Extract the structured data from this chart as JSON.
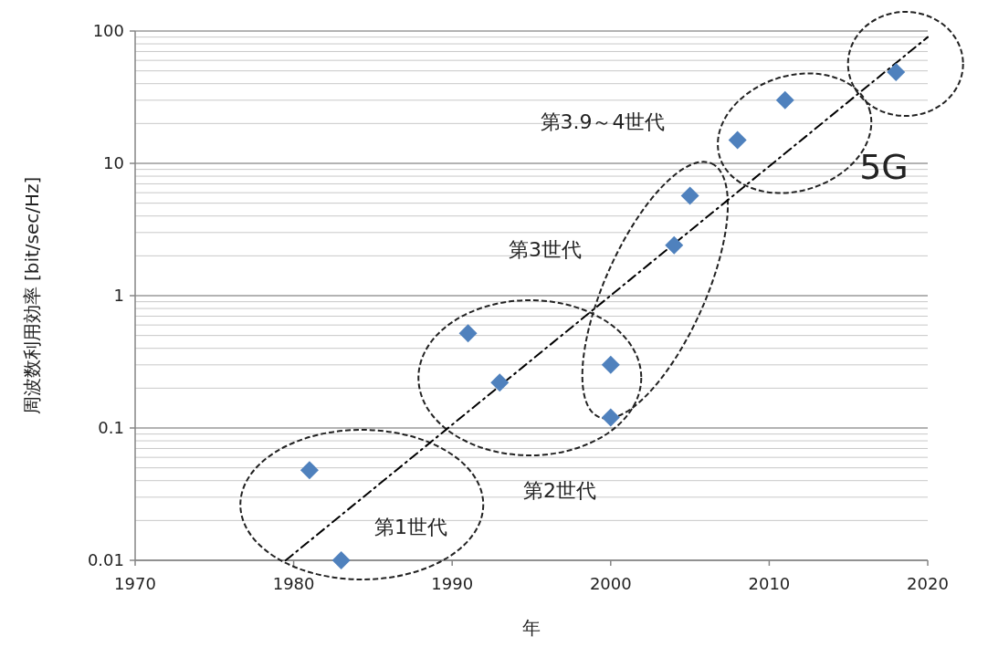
{
  "chart_data": {
    "type": "scatter",
    "xlabel": "年",
    "ylabel": "周波数利用効率 [bit/sec/Hz]",
    "xlim": [
      1970,
      2020
    ],
    "ylim": [
      0.01,
      100
    ],
    "xticks": [
      1970,
      1980,
      1990,
      2000,
      2010,
      2020
    ],
    "yticks": [
      0.01,
      0.1,
      1,
      10,
      100
    ],
    "log": "y",
    "grid": "y",
    "series": [
      {
        "marker": "diamond",
        "color": "#4f81bd",
        "x": [
          1981,
          1983,
          1991,
          1993,
          2000,
          2000,
          2004,
          2005,
          2008,
          2011,
          2018
        ],
        "values": [
          0.048,
          0.01,
          0.52,
          0.22,
          0.3,
          0.12,
          2.4,
          5.7,
          15,
          30,
          49
        ]
      },
      {
        "type": "line",
        "marker": "none",
        "line_style": "dashed",
        "color": "#000000",
        "x": [
          1979.5,
          2020
        ],
        "values": [
          0.01,
          90
        ]
      }
    ],
    "annotations": [
      "第1世代",
      "第2世代",
      "第3世代",
      "第3.9～4世代",
      "5G"
    ]
  }
}
